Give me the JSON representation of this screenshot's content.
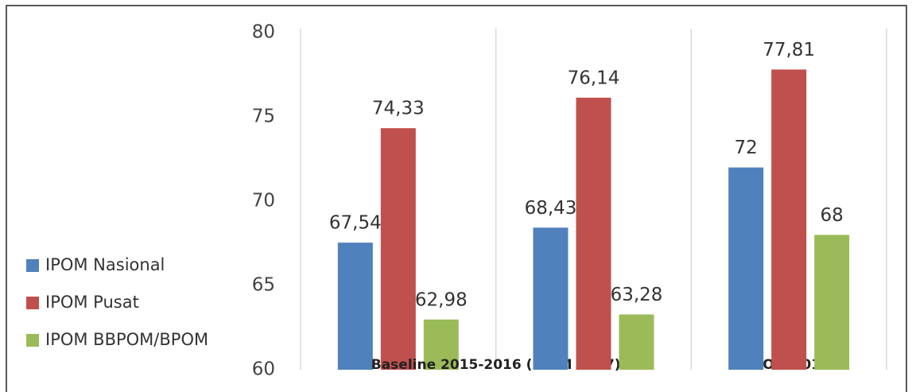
{
  "chart_data": {
    "type": "bar",
    "categories": [
      null,
      "Baseline 2015-2016 (IPOM 2017)",
      "IPOM 2018"
    ],
    "series": [
      {
        "name": "IPOM Nasional",
        "color": "#4f81bd",
        "values": [
          67.54,
          68.43,
          72
        ],
        "value_labels": [
          "67,54",
          "68,43",
          "72"
        ]
      },
      {
        "name": "IPOM Pusat",
        "color": "#c0504d",
        "values": [
          74.33,
          76.14,
          77.81
        ],
        "value_labels": [
          "74,33",
          "76,14",
          "77,81"
        ]
      },
      {
        "name": "IPOM BBPOM/BPOM",
        "color": "#9bbb59",
        "values": [
          62.98,
          63.28,
          68
        ],
        "value_labels": [
          "62,98",
          "63,28",
          "68"
        ]
      }
    ],
    "ylim": [
      60,
      80
    ],
    "yticks": [
      60,
      65,
      70,
      75,
      80
    ],
    "legend": "left"
  }
}
